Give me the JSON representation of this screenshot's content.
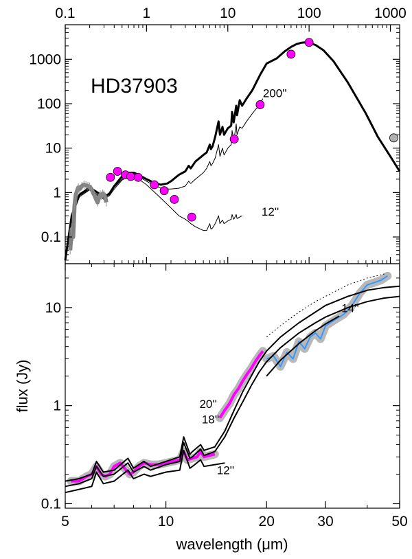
{
  "chart_data": [
    {
      "type": "line",
      "panel": "top",
      "title": "HD37903",
      "xscale": "log",
      "yscale": "log",
      "xlim": [
        0.1,
        1300
      ],
      "ylim": [
        0.025,
        6000
      ],
      "x_ticks": [
        0.1,
        1,
        10,
        100,
        1000
      ],
      "x_tick_labels": [
        "0.1",
        "1",
        "10",
        "100",
        "1000"
      ],
      "x_ticks_position": "top",
      "y_ticks": [
        0.1,
        1,
        10,
        100,
        1000
      ],
      "y_tick_labels": [
        "0.1",
        "1",
        "10",
        "100",
        "1000"
      ],
      "annotations": [
        {
          "text": "200''",
          "x": 27,
          "y": 140
        },
        {
          "text": "12''",
          "x": 26,
          "y": 0.3
        }
      ],
      "series": [
        {
          "role": "thick model (total)",
          "color": "#000000",
          "x": [
            0.1,
            0.12,
            0.15,
            0.2,
            0.25,
            0.3,
            0.35,
            0.4,
            0.5,
            0.6,
            0.7,
            0.8,
            1.0,
            1.2,
            1.5,
            1.8,
            2.0,
            2.5,
            3.0,
            3.3,
            3.5,
            4.0,
            5.0,
            5.5,
            6.0,
            6.2,
            6.5,
            7.0,
            7.7,
            8.0,
            8.6,
            9.0,
            10.0,
            11.0,
            11.3,
            11.8,
            12.0,
            12.7,
            13.0,
            14.0,
            15.0,
            17.0,
            20.0,
            25.0,
            30.0,
            40.0,
            50.0,
            60.0,
            70.0,
            80.0,
            90.0,
            100.0,
            120.0,
            150.0,
            200.0,
            300.0,
            500.0,
            700.0,
            1000.0,
            1300.0
          ],
          "y": [
            0.03,
            0.3,
            0.9,
            1.3,
            1.0,
            0.8,
            0.95,
            1.4,
            2.3,
            2.8,
            2.8,
            2.5,
            2.0,
            1.7,
            1.5,
            1.6,
            1.8,
            2.5,
            3.0,
            4.0,
            3.5,
            5.0,
            7.0,
            8.0,
            12.0,
            9.5,
            11.0,
            18.0,
            40.0,
            20.0,
            30.0,
            20.0,
            28.0,
            32.0,
            65.0,
            38.0,
            45.0,
            90.0,
            55.0,
            120.0,
            90.0,
            130.0,
            200.0,
            450.0,
            800.0,
            1050.0,
            1500.0,
            1900.0,
            2200.0,
            2350.0,
            2400.0,
            2350.0,
            2100.0,
            1600.0,
            900.0,
            300.0,
            60.0,
            18.0,
            6.5,
            3.0
          ]
        },
        {
          "role": "thin model (200'')",
          "color": "#000000",
          "x": [
            0.1,
            0.12,
            0.15,
            0.2,
            0.25,
            0.3,
            0.35,
            0.4,
            0.5,
            0.6,
            0.7,
            0.8,
            1.0,
            1.2,
            1.5,
            1.8,
            2.0,
            2.5,
            3.0,
            3.3,
            3.5,
            4.0,
            5.0,
            5.5,
            6.0,
            6.2,
            6.5,
            7.0,
            7.7,
            8.0,
            8.6,
            9.0,
            10.0,
            11.0,
            11.3,
            11.8,
            12.0,
            12.7,
            13.0,
            14.0,
            15.0,
            17.0,
            20.0,
            25.0,
            27.0
          ],
          "y": [
            0.03,
            0.3,
            0.85,
            1.2,
            0.9,
            0.75,
            0.9,
            1.3,
            2.0,
            2.5,
            2.5,
            2.3,
            1.8,
            1.5,
            1.25,
            1.2,
            1.2,
            1.25,
            1.4,
            1.8,
            1.6,
            2.0,
            2.8,
            3.5,
            5.0,
            4.0,
            4.5,
            6.0,
            12.0,
            6.5,
            10.0,
            7.0,
            10.0,
            12.0,
            25.0,
            15.0,
            17.0,
            35.0,
            20.0,
            30.0,
            28.0,
            40.0,
            60.0,
            100.0,
            130.0
          ]
        },
        {
          "role": "thin model (12'')",
          "color": "#000000",
          "x": [
            0.1,
            0.12,
            0.15,
            0.2,
            0.25,
            0.3,
            0.35,
            0.4,
            0.5,
            0.6,
            0.7,
            0.8,
            1.0,
            1.2,
            1.5,
            2.0,
            2.5,
            3.0,
            3.3,
            3.5,
            4.0,
            5.0,
            5.5,
            6.0,
            6.2,
            6.5,
            7.0,
            7.7,
            8.0,
            8.6,
            9.0,
            10.0,
            11.0,
            11.3,
            11.8,
            12.0,
            12.7,
            13.0,
            14.0,
            15.0
          ],
          "y": [
            0.03,
            0.3,
            0.8,
            1.15,
            0.85,
            0.7,
            0.85,
            1.2,
            1.9,
            2.3,
            2.2,
            2.0,
            1.5,
            1.1,
            0.75,
            0.45,
            0.3,
            0.25,
            0.22,
            0.2,
            0.17,
            0.14,
            0.14,
            0.2,
            0.15,
            0.16,
            0.2,
            0.3,
            0.2,
            0.24,
            0.2,
            0.23,
            0.25,
            0.32,
            0.25,
            0.26,
            0.32,
            0.26,
            0.28,
            0.3
          ]
        },
        {
          "role": "observed spectrum (gray)",
          "color": "#808080",
          "x": [
            0.115,
            0.12,
            0.125,
            0.13,
            0.135,
            0.14,
            0.145,
            0.15,
            0.16,
            0.17,
            0.18,
            0.19,
            0.2,
            0.21,
            0.22,
            0.23,
            0.24,
            0.25,
            0.26,
            0.27,
            0.28,
            0.29,
            0.3,
            0.31,
            0.32
          ],
          "y": [
            0.05,
            0.15,
            0.1,
            0.5,
            0.9,
            1.1,
            1.3,
            1.2,
            1.4,
            1.5,
            1.45,
            1.4,
            1.35,
            1.2,
            1.0,
            0.85,
            0.7,
            0.6,
            0.75,
            0.9,
            0.85,
            0.95,
            0.9,
            0.8,
            0.6
          ]
        }
      ],
      "photometry": [
        {
          "x": 0.36,
          "y": 2.2,
          "color": "#ff00ff"
        },
        {
          "x": 0.44,
          "y": 3.0,
          "color": "#ff00ff"
        },
        {
          "x": 0.55,
          "y": 2.5,
          "color": "#ff00ff"
        },
        {
          "x": 0.64,
          "y": 2.3,
          "color": "#ff00ff"
        },
        {
          "x": 0.79,
          "y": 2.2,
          "color": "#ff00ff"
        },
        {
          "x": 1.25,
          "y": 1.5,
          "color": "#ff00ff"
        },
        {
          "x": 1.65,
          "y": 1.1,
          "color": "#ff00ff"
        },
        {
          "x": 2.2,
          "y": 0.7,
          "color": "#ff00ff"
        },
        {
          "x": 3.6,
          "y": 0.28,
          "color": "#ff00ff"
        },
        {
          "x": 12.0,
          "y": 16.0,
          "color": "#ff00ff"
        },
        {
          "x": 25.0,
          "y": 95.0,
          "color": "#ff00ff"
        },
        {
          "x": 60.0,
          "y": 1300.0,
          "color": "#ff00ff"
        },
        {
          "x": 100.0,
          "y": 2400.0,
          "color": "#ff00ff"
        },
        {
          "x": 1100.0,
          "y": 17.0,
          "color": "#b0b0b0"
        }
      ]
    },
    {
      "type": "line",
      "panel": "bottom",
      "xlabel": "wavelength (μm)",
      "ylabel": "flux (Jy)",
      "xscale": "log",
      "yscale": "log",
      "xlim": [
        5,
        50
      ],
      "ylim": [
        0.09,
        28
      ],
      "x_ticks": [
        5,
        10,
        20,
        30,
        50
      ],
      "x_tick_labels": [
        "5",
        "10",
        "20",
        "30",
        "50"
      ],
      "y_ticks": [
        0.1,
        1,
        10
      ],
      "y_tick_labels": [
        "0.1",
        "1",
        "10"
      ],
      "annotations": [
        {
          "text": "20''",
          "x": 12.6,
          "y": 0.95
        },
        {
          "text": "18''",
          "x": 12.8,
          "y": 0.66
        },
        {
          "text": "12''",
          "x": 14.2,
          "y": 0.2
        },
        {
          "text": "14''",
          "x": 33.5,
          "y": 9.0
        }
      ],
      "series": [
        {
          "role": "IRS SL spectrum (magenta)",
          "color": "#ff00ff",
          "x": [
            5.2,
            5.5,
            5.8,
            6.0,
            6.2,
            6.4,
            6.6,
            6.8,
            7.0,
            7.3,
            7.6,
            7.8,
            8.0,
            8.3,
            8.6,
            9.0,
            9.5,
            10.0,
            10.5,
            11.0,
            11.3,
            11.6,
            12.0,
            12.4,
            12.7,
            13.0,
            13.5,
            14.0
          ],
          "y": [
            0.17,
            0.17,
            0.19,
            0.2,
            0.24,
            0.2,
            0.19,
            0.2,
            0.24,
            0.26,
            0.22,
            0.2,
            0.21,
            0.24,
            0.26,
            0.25,
            0.25,
            0.26,
            0.27,
            0.28,
            0.34,
            0.28,
            0.29,
            0.3,
            0.34,
            0.3,
            0.31,
            0.32
          ]
        },
        {
          "role": "IRS SL spectrum (magenta, long)",
          "color": "#ff00ff",
          "x": [
            14.5,
            15.0,
            15.5,
            16.0,
            16.5,
            17.0,
            17.5,
            18.0,
            18.5,
            19.0,
            19.5
          ],
          "y": [
            0.75,
            0.9,
            1.05,
            1.3,
            1.5,
            1.8,
            2.1,
            2.4,
            2.8,
            3.2,
            3.6
          ]
        },
        {
          "role": "IRS LL spectrum (blue)",
          "color": "#3399ff",
          "x": [
            20.0,
            21.0,
            22.0,
            23.0,
            24.0,
            25.0,
            26.0,
            27.0,
            28.0,
            29.0,
            30.0,
            32.0,
            34.0,
            36.0,
            38.0,
            40.0,
            42.0,
            44.0,
            46.0
          ],
          "y": [
            3.0,
            3.2,
            2.5,
            3.5,
            3.0,
            4.5,
            3.8,
            5.0,
            5.5,
            4.8,
            6.5,
            7.5,
            8.5,
            10.5,
            14.0,
            17.0,
            18.0,
            19.0,
            21.0
          ]
        },
        {
          "role": "model 20''",
          "color": "#000000",
          "x": [
            5.0,
            5.5,
            6.0,
            6.2,
            6.5,
            7.0,
            7.7,
            8.0,
            8.6,
            9.0,
            10.0,
            11.0,
            11.3,
            11.8,
            12.0,
            12.7,
            13.0,
            14.0,
            15.0,
            16.0,
            17.0,
            18.0,
            19.0,
            20.0,
            22.0,
            25.0,
            28.0,
            30.0,
            35.0,
            40.0,
            45.0,
            50.0
          ],
          "y": [
            0.17,
            0.18,
            0.2,
            0.27,
            0.21,
            0.22,
            0.29,
            0.23,
            0.27,
            0.24,
            0.27,
            0.3,
            0.48,
            0.32,
            0.34,
            0.4,
            0.35,
            0.38,
            0.55,
            0.9,
            1.4,
            2.0,
            2.8,
            3.6,
            5.0,
            7.0,
            9.0,
            10.5,
            13.0,
            15.0,
            16.0,
            16.5
          ]
        },
        {
          "role": "model 18''",
          "color": "#000000",
          "x": [
            5.0,
            5.5,
            6.0,
            6.2,
            6.5,
            7.0,
            7.7,
            8.0,
            8.6,
            9.0,
            10.0,
            11.0,
            11.3,
            11.8,
            12.0,
            12.7,
            13.0,
            14.0,
            15.0,
            16.0,
            17.0,
            18.0,
            19.0,
            20.0,
            22.0,
            25.0,
            28.0,
            30.0,
            35.0,
            40.0,
            45.0,
            50.0
          ],
          "y": [
            0.15,
            0.16,
            0.18,
            0.24,
            0.19,
            0.2,
            0.26,
            0.21,
            0.24,
            0.22,
            0.25,
            0.27,
            0.42,
            0.29,
            0.3,
            0.36,
            0.31,
            0.34,
            0.48,
            0.75,
            1.1,
            1.6,
            2.2,
            2.8,
            3.9,
            5.5,
            7.0,
            8.0,
            10.0,
            11.5,
            12.5,
            13.0
          ]
        },
        {
          "role": "model 12''",
          "color": "#000000",
          "x": [
            5.0,
            5.5,
            6.0,
            6.2,
            6.5,
            7.0,
            7.7,
            8.0,
            8.6,
            9.0,
            10.0,
            11.0,
            11.3,
            11.8,
            12.0,
            12.7,
            13.0,
            14.0,
            15.0
          ],
          "y": [
            0.13,
            0.14,
            0.15,
            0.21,
            0.16,
            0.17,
            0.22,
            0.18,
            0.2,
            0.19,
            0.21,
            0.22,
            0.35,
            0.23,
            0.24,
            0.28,
            0.24,
            0.25,
            0.26
          ]
        },
        {
          "role": "model 14''",
          "color": "#000000",
          "x": [
            20.0,
            22.0,
            25.0,
            28.0,
            30.0,
            33.0
          ],
          "y": [
            2.0,
            2.9,
            4.3,
            5.8,
            6.8,
            8.2
          ]
        },
        {
          "role": "dotted model",
          "color": "#000000",
          "dashed": true,
          "x": [
            20.0,
            22.0,
            25.0,
            28.0,
            30.0,
            35.0,
            40.0,
            45.0
          ],
          "y": [
            5.0,
            6.5,
            9.0,
            11.5,
            13.0,
            17.0,
            20.0,
            22.0
          ]
        }
      ]
    }
  ]
}
